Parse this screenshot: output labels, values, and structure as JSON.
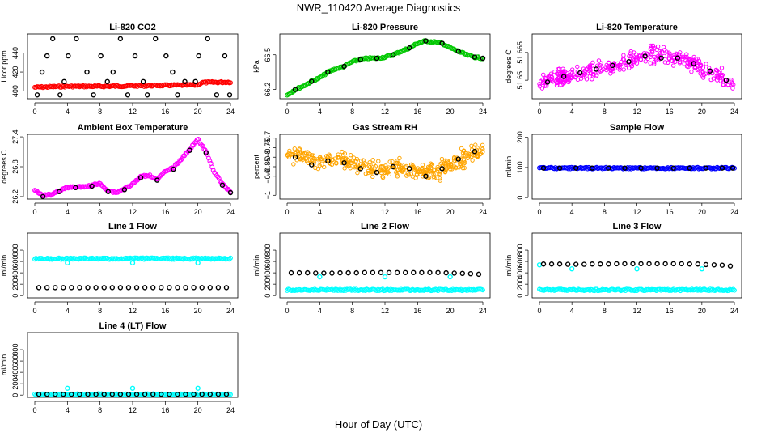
{
  "page": {
    "title": "NWR_110420  Average Diagnostics",
    "xlabel": "Hour of Day (UTC)"
  },
  "chart_data": [
    {
      "type": "scatter",
      "title": "Li-820 CO2",
      "ylabel": "Licor ppm",
      "xlim": [
        0,
        24
      ],
      "ylim": [
        392,
        460
      ],
      "xticks": [
        0,
        4,
        8,
        12,
        16,
        20,
        24
      ],
      "yticks": [
        400,
        420,
        440
      ],
      "grid": false,
      "series": [
        {
          "color": "#ff0000",
          "style": "dense",
          "x": [
            0,
            4,
            8,
            12,
            16,
            20,
            20.5,
            24
          ],
          "y": [
            404,
            405,
            405,
            405.5,
            406,
            406.5,
            409,
            409.5
          ]
        },
        {
          "color": "#000000",
          "style": "points",
          "x": [
            0.3,
            1.5,
            2.2,
            3.6,
            4.1,
            5.1,
            7.2,
            8.1,
            8.9,
            10.5,
            11.4,
            12.3,
            13.3,
            14.8,
            16.1,
            17.5,
            18.4,
            20.1,
            21.2,
            23.3,
            23.9,
            0.9,
            3.1,
            6.4,
            9.6,
            13.8,
            16.9,
            19.7,
            22.3
          ],
          "y": [
            396,
            437,
            455,
            410,
            437,
            455,
            396,
            437,
            410,
            455,
            396,
            437,
            410,
            455,
            437,
            396,
            410,
            437,
            455,
            437,
            396,
            420,
            396,
            420,
            420,
            396,
            420,
            410,
            396
          ]
        }
      ]
    },
    {
      "type": "scatter",
      "title": "Li-820 Pressure",
      "ylabel": "kPa",
      "xlim": [
        0,
        24
      ],
      "ylim": [
        66.12,
        66.68
      ],
      "xticks": [
        0,
        4,
        8,
        12,
        16,
        20,
        24
      ],
      "yticks": [
        66.2,
        66.5
      ],
      "grid": false,
      "series": [
        {
          "color": "#00c800",
          "style": "dense",
          "x": [
            0,
            1,
            2,
            3,
            4,
            5,
            6,
            7,
            8,
            9,
            10,
            11,
            12,
            13,
            14,
            15,
            16,
            17,
            18,
            19,
            20,
            21,
            22,
            23,
            24
          ],
          "y": [
            66.15,
            66.2,
            66.23,
            66.27,
            66.3,
            66.35,
            66.38,
            66.4,
            66.44,
            66.46,
            66.47,
            66.47,
            66.48,
            66.5,
            66.53,
            66.56,
            66.6,
            66.62,
            66.61,
            66.6,
            66.56,
            66.53,
            66.5,
            66.48,
            66.47
          ]
        },
        {
          "color": "#000000",
          "style": "points",
          "x": [
            1,
            3,
            5,
            7,
            9,
            11,
            13,
            15,
            17,
            19,
            21,
            23,
            24
          ],
          "y": [
            66.2,
            66.27,
            66.35,
            66.4,
            66.46,
            66.47,
            66.5,
            66.56,
            66.62,
            66.6,
            66.53,
            66.48,
            66.47
          ]
        }
      ]
    },
    {
      "type": "scatter",
      "title": "Li-820 Temperature",
      "ylabel": "degrees C",
      "xlim": [
        0,
        24
      ],
      "ylim": [
        51.64,
        51.675
      ],
      "xticks": [
        0,
        4,
        8,
        12,
        16,
        20,
        24
      ],
      "yticks": [
        51.65,
        51.665
      ],
      "grid": false,
      "series": [
        {
          "color": "#ff00ff",
          "style": "cloud",
          "x": [
            0,
            2,
            4,
            6,
            8,
            10,
            12,
            14,
            16,
            18,
            20,
            22,
            24
          ],
          "y": [
            51.648,
            51.651,
            51.653,
            51.655,
            51.657,
            51.659,
            51.662,
            51.664,
            51.663,
            51.661,
            51.657,
            51.653,
            51.647
          ]
        },
        {
          "color": "#000000",
          "style": "points",
          "x": [
            1,
            3,
            5,
            7,
            9,
            11,
            13,
            15,
            17,
            19,
            21,
            23
          ],
          "y": [
            51.649,
            51.652,
            51.654,
            51.656,
            51.658,
            51.66,
            51.663,
            51.662,
            51.662,
            51.659,
            51.655,
            51.65
          ]
        }
      ]
    },
    {
      "type": "scatter",
      "title": "Ambient Box Temperature",
      "ylabel": "degrees C",
      "xlim": [
        0,
        24
      ],
      "ylim": [
        26.15,
        27.45
      ],
      "xticks": [
        0,
        4,
        8,
        12,
        16,
        20,
        24
      ],
      "yticks": [
        26.2,
        26.8,
        27.4
      ],
      "grid": false,
      "series": [
        {
          "color": "#ff00ff",
          "style": "dense",
          "x": [
            0,
            1,
            2,
            3,
            4,
            5,
            6,
            7,
            8,
            9,
            10,
            11,
            12,
            13,
            14,
            15,
            16,
            17,
            18,
            19,
            20,
            21,
            22,
            23,
            24
          ],
          "y": [
            26.32,
            26.22,
            26.24,
            26.32,
            26.38,
            26.4,
            26.39,
            26.43,
            26.46,
            26.32,
            26.28,
            26.36,
            26.45,
            26.6,
            26.63,
            26.55,
            26.7,
            26.78,
            26.96,
            27.15,
            27.35,
            27.1,
            26.7,
            26.45,
            26.3
          ]
        },
        {
          "color": "#000000",
          "style": "points",
          "x": [
            1,
            3,
            5,
            7,
            9,
            11,
            13,
            15,
            17,
            19,
            21,
            23,
            24
          ],
          "y": [
            26.2,
            26.3,
            26.38,
            26.41,
            26.3,
            26.34,
            26.58,
            26.53,
            26.75,
            27.13,
            27.08,
            26.43,
            26.28
          ]
        }
      ]
    },
    {
      "type": "scatter",
      "title": "Gas Stream RH",
      "ylabel": "percent",
      "xlim": [
        0,
        24
      ],
      "ylim": [
        -1.02,
        -0.68
      ],
      "xticks": [
        0,
        4,
        8,
        12,
        16,
        20,
        24
      ],
      "yticks": [
        -1.0,
        -0.9,
        -0.85,
        -0.8,
        -0.75,
        -0.7
      ],
      "grid": false,
      "series": [
        {
          "color": "#ffa500",
          "style": "cloud",
          "x": [
            0,
            2,
            4,
            6,
            8,
            10,
            12,
            14,
            16,
            18,
            20,
            22,
            24
          ],
          "y": [
            -0.78,
            -0.8,
            -0.82,
            -0.8,
            -0.83,
            -0.85,
            -0.87,
            -0.85,
            -0.87,
            -0.88,
            -0.84,
            -0.8,
            -0.76
          ]
        },
        {
          "color": "#000000",
          "style": "points",
          "x": [
            1,
            3,
            5,
            7,
            9,
            11,
            13,
            15,
            17,
            19,
            21,
            23
          ],
          "y": [
            -0.8,
            -0.84,
            -0.82,
            -0.83,
            -0.86,
            -0.88,
            -0.85,
            -0.86,
            -0.9,
            -0.86,
            -0.81,
            -0.77
          ]
        }
      ]
    },
    {
      "type": "scatter",
      "title": "Sample Flow",
      "ylabel": "ml/min",
      "xlim": [
        0,
        24
      ],
      "ylim": [
        -5,
        210
      ],
      "xticks": [
        0,
        4,
        8,
        12,
        16,
        20,
        24
      ],
      "yticks": [
        0,
        100,
        200
      ],
      "grid": false,
      "series": [
        {
          "color": "#0000ff",
          "style": "dense",
          "x": [
            0,
            24
          ],
          "y": [
            98,
            98
          ]
        },
        {
          "color": "#000000",
          "style": "points",
          "x": [
            0.5,
            2.5,
            4.5,
            6.5,
            8.5,
            10.5,
            12.5,
            14.5,
            16.5,
            18.5,
            20.5,
            22.5,
            23.8
          ],
          "y": [
            98,
            98,
            98,
            98,
            98,
            98,
            98,
            98,
            98,
            98,
            98,
            98,
            98
          ]
        }
      ]
    },
    {
      "type": "scatter",
      "title": "Line 1 Flow",
      "ylabel": "ml/min",
      "xlim": [
        0,
        24
      ],
      "ylim": [
        -40,
        1100
      ],
      "xticks": [
        0,
        4,
        8,
        12,
        16,
        20,
        24
      ],
      "yticks": [
        0,
        200,
        400,
        600,
        800
      ],
      "grid": false,
      "series": [
        {
          "color": "#00ffff",
          "style": "dense",
          "x": [
            0,
            24
          ],
          "y": [
            650,
            650
          ]
        },
        {
          "color": "#00ffff",
          "style": "points",
          "x": [
            4,
            12,
            20
          ],
          "y": [
            575,
            575,
            575
          ]
        },
        {
          "color": "#000000",
          "style": "points",
          "x": [
            0.5,
            1.5,
            2.5,
            3.5,
            4.5,
            5.5,
            6.5,
            7.5,
            8.5,
            9.5,
            10.5,
            11.5,
            12.5,
            13.5,
            14.5,
            15.5,
            16.5,
            17.5,
            18.5,
            19.5,
            20.5,
            21.5,
            22.5,
            23.5
          ],
          "y": [
            140,
            140,
            140,
            140,
            140,
            140,
            140,
            140,
            140,
            140,
            140,
            140,
            140,
            140,
            140,
            140,
            140,
            140,
            140,
            140,
            140,
            140,
            140,
            140
          ]
        }
      ]
    },
    {
      "type": "scatter",
      "title": "Line 2 Flow",
      "ylabel": "ml/min",
      "xlim": [
        0,
        24
      ],
      "ylim": [
        -40,
        1100
      ],
      "xticks": [
        0,
        4,
        8,
        12,
        16,
        20,
        24
      ],
      "yticks": [
        0,
        200,
        400,
        600,
        800
      ],
      "grid": false,
      "series": [
        {
          "color": "#00ffff",
          "style": "dense",
          "x": [
            0,
            24
          ],
          "y": [
            100,
            100
          ]
        },
        {
          "color": "#00ffff",
          "style": "points",
          "x": [
            4,
            12,
            20
          ],
          "y": [
            330,
            330,
            330
          ]
        },
        {
          "color": "#000000",
          "style": "points",
          "x": [
            0.5,
            1.5,
            2.5,
            3.5,
            4.5,
            5.5,
            6.5,
            7.5,
            8.5,
            9.5,
            10.5,
            11.5,
            12.5,
            13.5,
            14.5,
            15.5,
            16.5,
            17.5,
            18.5,
            19.5,
            20.5,
            21.5,
            22.5,
            23.5
          ],
          "y": [
            400,
            400,
            400,
            395,
            395,
            395,
            400,
            400,
            400,
            405,
            405,
            405,
            405,
            405,
            405,
            405,
            405,
            405,
            405,
            400,
            395,
            390,
            385,
            375
          ]
        }
      ]
    },
    {
      "type": "scatter",
      "title": "Line 3 Flow",
      "ylabel": "ml/min",
      "xlim": [
        0,
        24
      ],
      "ylim": [
        -40,
        1100
      ],
      "xticks": [
        0,
        4,
        8,
        12,
        16,
        20,
        24
      ],
      "yticks": [
        0,
        200,
        400,
        600,
        800
      ],
      "grid": false,
      "series": [
        {
          "color": "#00ffff",
          "style": "dense",
          "x": [
            0,
            24
          ],
          "y": [
            100,
            100
          ]
        },
        {
          "color": "#00ffff",
          "style": "points",
          "x": [
            0,
            4,
            12,
            20
          ],
          "y": [
            540,
            470,
            470,
            470
          ]
        },
        {
          "color": "#000000",
          "style": "points",
          "x": [
            0.5,
            1.5,
            2.5,
            3.5,
            4.5,
            5.5,
            6.5,
            7.5,
            8.5,
            9.5,
            10.5,
            11.5,
            12.5,
            13.5,
            14.5,
            15.5,
            16.5,
            17.5,
            18.5,
            19.5,
            20.5,
            21.5,
            22.5,
            23.5
          ],
          "y": [
            555,
            555,
            555,
            550,
            550,
            550,
            555,
            555,
            555,
            560,
            560,
            560,
            560,
            560,
            560,
            560,
            560,
            560,
            555,
            555,
            545,
            540,
            535,
            520
          ]
        }
      ]
    },
    {
      "type": "scatter",
      "title": "Line 4 (LT) Flow",
      "ylabel": "ml/min",
      "xlim": [
        0,
        24
      ],
      "ylim": [
        -40,
        1100
      ],
      "xticks": [
        0,
        4,
        8,
        12,
        16,
        20,
        24
      ],
      "yticks": [
        0,
        200,
        400,
        600,
        800
      ],
      "grid": false,
      "series": [
        {
          "color": "#00ffff",
          "style": "dense",
          "x": [
            0,
            24
          ],
          "y": [
            10,
            10
          ]
        },
        {
          "color": "#00ffff",
          "style": "points",
          "x": [
            4,
            12,
            20
          ],
          "y": [
            120,
            120,
            120
          ]
        },
        {
          "color": "#000000",
          "style": "points",
          "x": [
            0.5,
            1.5,
            2.5,
            3.5,
            4.5,
            5.5,
            6.5,
            7.5,
            8.5,
            9.5,
            10.5,
            11.5,
            12.5,
            13.5,
            14.5,
            15.5,
            16.5,
            17.5,
            18.5,
            19.5,
            20.5,
            21.5,
            22.5,
            23.5
          ],
          "y": [
            15,
            15,
            15,
            15,
            15,
            15,
            15,
            15,
            15,
            15,
            15,
            15,
            15,
            15,
            15,
            15,
            15,
            15,
            15,
            15,
            15,
            15,
            15,
            15
          ]
        }
      ]
    }
  ]
}
